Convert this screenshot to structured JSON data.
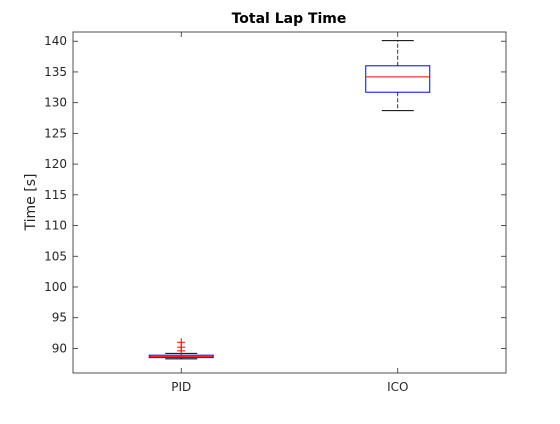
{
  "chart_data": {
    "type": "box",
    "title": "Total Lap Time",
    "xlabel": "",
    "ylabel": "Time [s]",
    "ylim": [
      86.0,
      141.5
    ],
    "yticks": [
      90,
      95,
      100,
      105,
      110,
      115,
      120,
      125,
      130,
      135,
      140
    ],
    "categories": [
      "PID",
      "ICO"
    ],
    "boxes": [
      {
        "label": "PID",
        "whisker_low": 88.3,
        "q1": 88.5,
        "median": 88.7,
        "q3": 88.9,
        "whisker_high": 89.2,
        "outliers": [
          89.6,
          90.2,
          91.0
        ]
      },
      {
        "label": "ICO",
        "whisker_low": 128.7,
        "q1": 131.7,
        "median": 134.2,
        "q3": 136.0,
        "whisker_high": 140.1,
        "outliers": []
      }
    ],
    "grid": false,
    "colors": {
      "box": "#0000ff",
      "median": "#ff0000",
      "whisker": "#000000",
      "outlier": "#ff0000",
      "axes": "#262626"
    }
  }
}
